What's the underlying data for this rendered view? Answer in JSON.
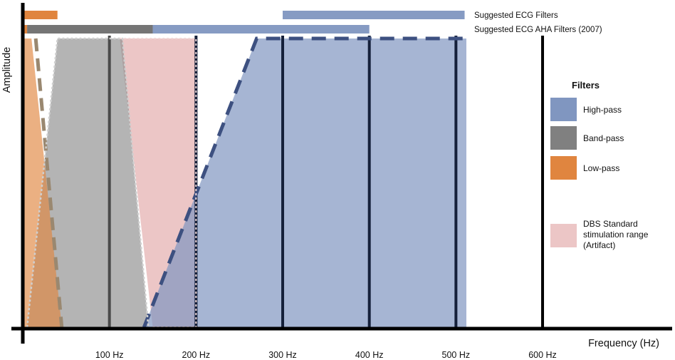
{
  "chart_data": {
    "type": "area",
    "xlabel": "Frequency (Hz)",
    "ylabel": "Amplitude",
    "xlim": [
      0,
      750
    ],
    "x_ticks": [
      {
        "value": 100,
        "label": "100 Hz"
      },
      {
        "value": 200,
        "label": "200 Hz"
      },
      {
        "value": 300,
        "label": "300 Hz"
      },
      {
        "value": 400,
        "label": "400 Hz"
      },
      {
        "value": 500,
        "label": "500 Hz"
      },
      {
        "value": 600,
        "label": "600 Hz"
      }
    ],
    "vertical_gridlines": [
      100,
      200,
      300,
      400,
      500,
      600
    ],
    "filter_regions": [
      {
        "key": "dbs",
        "label": "DBS Standard stimulation range (Artifact)",
        "color": "#e6b3b3",
        "polygon": [
          [
            112,
            1
          ],
          [
            200,
            1
          ],
          [
            200,
            0
          ],
          [
            150,
            0
          ]
        ]
      },
      {
        "key": "bandpass",
        "label": "Band-pass",
        "color": "#8c8c8c",
        "polygon": [
          [
            5,
            0
          ],
          [
            40,
            1
          ],
          [
            115,
            1
          ],
          [
            145,
            0
          ]
        ]
      },
      {
        "key": "lowpass",
        "label": "Low-pass",
        "color": "#e0853f",
        "polygon": [
          [
            2,
            1
          ],
          [
            10,
            1
          ],
          [
            45,
            0
          ],
          [
            2,
            0
          ]
        ]
      },
      {
        "key": "highpass",
        "label": "High-pass",
        "color": "#8096c0",
        "polygon": [
          [
            140,
            0
          ],
          [
            270,
            1
          ],
          [
            512,
            1
          ],
          [
            512,
            0
          ]
        ]
      }
    ],
    "suggested_bars": [
      {
        "label": "Suggested ECG Filters",
        "segments": [
          {
            "filter": "lowpass",
            "from": 0,
            "to": 40
          },
          {
            "filter": "highpass",
            "from": 300,
            "to": 510
          }
        ]
      },
      {
        "label": "Suggested ECG AHA Filters (2007)",
        "segments": [
          {
            "filter": "lowpass",
            "from": 0,
            "to": 5
          },
          {
            "filter": "bandpass",
            "from": 5,
            "to": 150
          },
          {
            "filter": "highpass",
            "from": 150,
            "to": 400
          }
        ]
      }
    ],
    "legend": {
      "title": "Filters",
      "placement": "right",
      "items": [
        {
          "key": "highpass",
          "label": "High-pass",
          "color": "#8096c0"
        },
        {
          "key": "bandpass",
          "label": "Band-pass",
          "color": "#808080"
        },
        {
          "key": "lowpass",
          "label": "Low-pass",
          "color": "#e0853f"
        },
        {
          "key": "dbs",
          "label": "DBS Standard stimulation range (Artifact)",
          "color": "#ecc6c6"
        }
      ]
    }
  }
}
